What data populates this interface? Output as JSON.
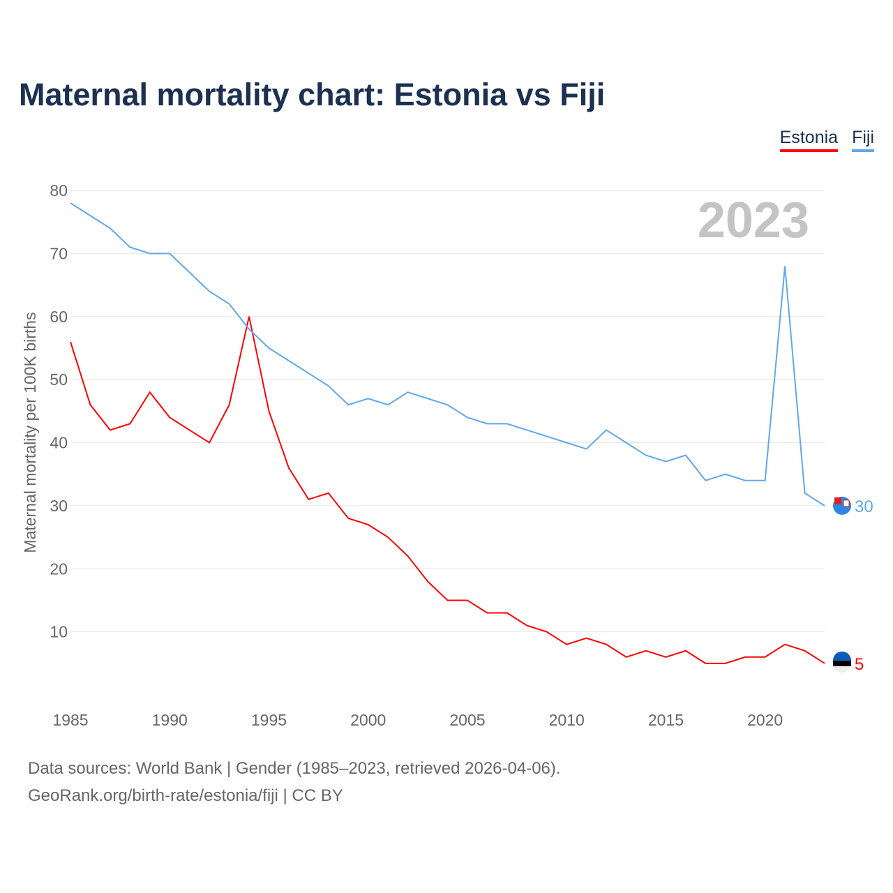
{
  "chart_data": {
    "type": "line",
    "title": "Maternal mortality chart: Estonia vs Fiji",
    "xlabel": "",
    "ylabel": "Maternal mortality per 100K births",
    "xlim": [
      1985,
      2023
    ],
    "ylim": [
      0,
      80
    ],
    "grid": true,
    "legend_position": "top-right",
    "year_label": "2023",
    "x_ticks": [
      1985,
      1990,
      1995,
      2000,
      2005,
      2010,
      2015,
      2020
    ],
    "y_ticks": [
      10,
      20,
      30,
      40,
      50,
      60,
      70,
      80
    ],
    "x": [
      1985,
      1986,
      1987,
      1988,
      1989,
      1990,
      1991,
      1992,
      1993,
      1994,
      1995,
      1996,
      1997,
      1998,
      1999,
      2000,
      2001,
      2002,
      2003,
      2004,
      2005,
      2006,
      2007,
      2008,
      2009,
      2010,
      2011,
      2012,
      2013,
      2014,
      2015,
      2016,
      2017,
      2018,
      2019,
      2020,
      2021,
      2022,
      2023
    ],
    "series": [
      {
        "name": "Estonia",
        "color": "#ff0000",
        "end_label": "5",
        "values": [
          56,
          46,
          42,
          43,
          48,
          44,
          42,
          40,
          46,
          60,
          45,
          36,
          31,
          32,
          28,
          27,
          25,
          22,
          18,
          15,
          15,
          13,
          13,
          11,
          10,
          8,
          9,
          8,
          6,
          7,
          6,
          7,
          5,
          5,
          6,
          6,
          8,
          7,
          5
        ]
      },
      {
        "name": "Fiji",
        "color": "#5fa8ec",
        "end_label": "30",
        "values": [
          78,
          76,
          74,
          71,
          70,
          70,
          67,
          64,
          62,
          58,
          55,
          53,
          51,
          49,
          46,
          47,
          46,
          48,
          47,
          46,
          44,
          43,
          43,
          42,
          41,
          40,
          39,
          42,
          40,
          38,
          37,
          38,
          34,
          35,
          34,
          34,
          68,
          32,
          30
        ]
      }
    ]
  },
  "footer": {
    "line1": "Data sources: World Bank | Gender (1985–2023, retrieved 2026-04-06).",
    "line2": "GeoRank.org/birth-rate/estonia/fiji | CC BY"
  }
}
